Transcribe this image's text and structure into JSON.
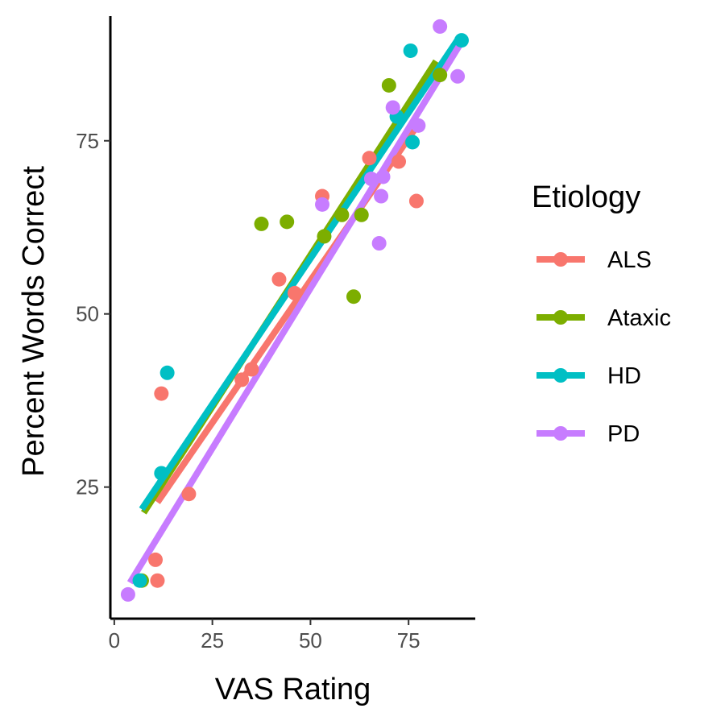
{
  "chart_data": {
    "type": "scatter",
    "xlabel": "VAS Rating",
    "ylabel": "Percent Words Correct",
    "xlim": [
      -1,
      92
    ],
    "ylim": [
      6,
      93
    ],
    "x_ticks": [
      0,
      25,
      50,
      75
    ],
    "y_ticks": [
      25,
      50,
      75
    ],
    "grid": false,
    "legend": {
      "title": "Etiology",
      "position": "right"
    },
    "series": [
      {
        "name": "ALS",
        "color": "#F8766D",
        "points": [
          [
            12,
            38.5
          ],
          [
            10.5,
            14.5
          ],
          [
            11,
            11.5
          ],
          [
            19,
            24
          ],
          [
            32.5,
            40.5
          ],
          [
            35,
            42
          ],
          [
            42,
            55
          ],
          [
            46,
            53
          ],
          [
            53,
            67
          ],
          [
            65,
            72.5
          ],
          [
            72.5,
            72
          ],
          [
            77,
            66.3
          ]
        ],
        "fit": [
          [
            11,
            22.8
          ],
          [
            77,
            77
          ]
        ]
      },
      {
        "name": "Ataxic",
        "color": "#7CAE00",
        "points": [
          [
            7,
            11.5
          ],
          [
            37.5,
            63
          ],
          [
            44,
            63.3
          ],
          [
            53.5,
            61.2
          ],
          [
            58,
            64.3
          ],
          [
            61,
            52.5
          ],
          [
            63,
            64.3
          ],
          [
            70,
            83
          ],
          [
            83,
            84.5
          ]
        ],
        "fit": [
          [
            7.5,
            21.3
          ],
          [
            82,
            86.5
          ]
        ]
      },
      {
        "name": "HD",
        "color": "#00BFC4",
        "points": [
          [
            6.5,
            11.5
          ],
          [
            12,
            27
          ],
          [
            13.5,
            41.5
          ],
          [
            72,
            78.5
          ],
          [
            75.5,
            88
          ],
          [
            76,
            74.8
          ],
          [
            88.5,
            89.5
          ]
        ],
        "fit": [
          [
            7,
            21.8
          ],
          [
            88,
            90
          ]
        ]
      },
      {
        "name": "PD",
        "color": "#C77CFF",
        "points": [
          [
            3.5,
            9.5
          ],
          [
            53,
            65.8
          ],
          [
            65.5,
            69.5
          ],
          [
            67.5,
            60.2
          ],
          [
            68,
            67
          ],
          [
            68.5,
            69.8
          ],
          [
            71,
            79.8
          ],
          [
            77.5,
            77.2
          ],
          [
            83,
            91.5
          ],
          [
            87.5,
            84.3
          ]
        ],
        "fit": [
          [
            4,
            11.2
          ],
          [
            88,
            88.8
          ]
        ]
      }
    ]
  }
}
